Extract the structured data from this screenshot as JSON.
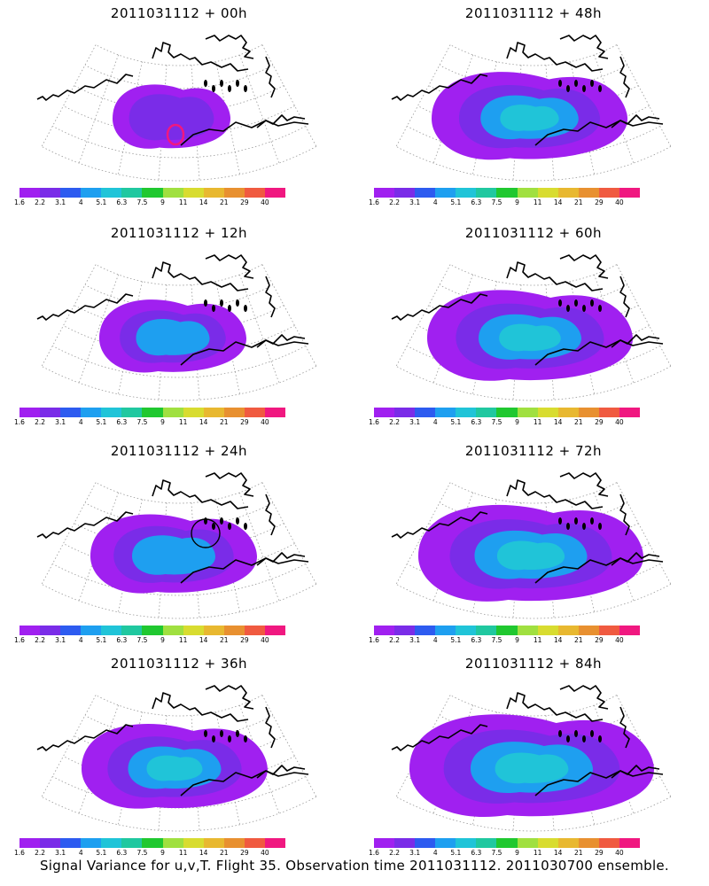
{
  "footer_caption": "Signal Variance for u,v,T. Flight 35. Observation time 2011031112. 2011030700 ensemble.",
  "colorbar": {
    "labels": [
      "1.6",
      "2.2",
      "3.1",
      "4",
      "5.1",
      "6.3",
      "7.5",
      "9",
      "11",
      "14",
      "21",
      "29",
      "40"
    ],
    "colors": [
      "#a020f0",
      "#7a2ce8",
      "#2d5bf0",
      "#1e9ff0",
      "#20c4d8",
      "#20c8a0",
      "#20c830",
      "#a0e040",
      "#d8dc30",
      "#e8b830",
      "#e89030",
      "#f05a40",
      "#f01880"
    ]
  },
  "panels": [
    {
      "title": "2011031112 + 00h",
      "intensity": 0.15,
      "marker": "red-circle"
    },
    {
      "title": "2011031112 + 48h",
      "intensity": 0.55,
      "marker": "none"
    },
    {
      "title": "2011031112 + 12h",
      "intensity": 0.3,
      "marker": "none"
    },
    {
      "title": "2011031112 + 60h",
      "intensity": 0.6,
      "marker": "none"
    },
    {
      "title": "2011031112 + 24h",
      "intensity": 0.4,
      "marker": "black-circle"
    },
    {
      "title": "2011031112 + 72h",
      "intensity": 0.7,
      "marker": "none"
    },
    {
      "title": "2011031112 + 36h",
      "intensity": 0.5,
      "marker": "none"
    },
    {
      "title": "2011031112 + 84h",
      "intensity": 0.8,
      "marker": "none"
    }
  ]
}
